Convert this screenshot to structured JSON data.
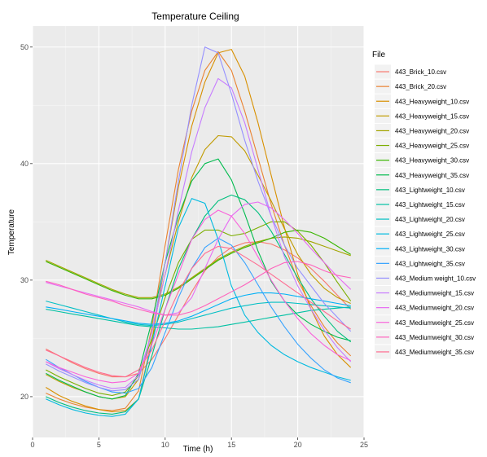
{
  "chart_data": {
    "type": "line",
    "title": "Temperature Ceiling",
    "xlabel": "Time (h)",
    "ylabel": "Temperature",
    "xlim": [
      0,
      25
    ],
    "ylim": [
      16.5,
      51.8
    ],
    "x_ticks": [
      0,
      5,
      10,
      15,
      20,
      25
    ],
    "y_ticks": [
      20,
      30,
      40,
      50
    ],
    "grid": true,
    "panel_background": "#ebebeb",
    "grid_color": "#ffffff",
    "legend": {
      "title": "File",
      "position": "right"
    },
    "x": [
      1,
      2,
      3,
      4,
      5,
      6,
      7,
      8,
      9,
      10,
      11,
      12,
      13,
      14,
      15,
      16,
      17,
      18,
      19,
      20,
      21,
      22,
      23,
      24
    ],
    "series": [
      {
        "name": "443_Brick_10.csv",
        "color": "#F8766D",
        "values": [
          24.1,
          23.5,
          22.9,
          22.4,
          22.0,
          21.7,
          21.7,
          22.0,
          23.2,
          25.0,
          27.0,
          29.0,
          30.8,
          32.0,
          32.8,
          33.2,
          33.3,
          33.1,
          32.6,
          31.9,
          31.0,
          29.9,
          28.7,
          27.5
        ]
      },
      {
        "name": "443_Brick_20.csv",
        "color": "#EA8331",
        "values": [
          20.3,
          19.8,
          19.4,
          19.1,
          18.9,
          18.8,
          19.0,
          20.5,
          26.0,
          33.0,
          39.5,
          44.5,
          48.0,
          49.6,
          48.0,
          44.5,
          40.5,
          36.5,
          33.0,
          30.0,
          27.8,
          26.0,
          24.6,
          23.5
        ]
      },
      {
        "name": "443_Heavyweight_10.csv",
        "color": "#D89000",
        "values": [
          20.8,
          20.1,
          19.6,
          19.2,
          18.9,
          18.7,
          18.8,
          19.8,
          24.8,
          31.5,
          38.0,
          43.2,
          47.0,
          49.5,
          49.8,
          47.5,
          43.5,
          39.0,
          34.5,
          30.5,
          27.5,
          25.2,
          23.6,
          22.5
        ]
      },
      {
        "name": "443_Heavyweight_15.csv",
        "color": "#C09B00",
        "values": [
          21.9,
          21.3,
          20.8,
          20.4,
          20.0,
          19.8,
          20.0,
          21.5,
          25.5,
          30.5,
          35.0,
          38.8,
          41.2,
          42.4,
          42.3,
          41.1,
          39.0,
          36.8,
          34.4,
          32.2,
          30.5,
          29.3,
          28.5,
          28.0
        ]
      },
      {
        "name": "443_Heavyweight_20.csv",
        "color": "#A3A500",
        "values": [
          31.7,
          31.2,
          30.7,
          30.2,
          29.7,
          29.2,
          28.8,
          28.5,
          28.5,
          28.8,
          29.4,
          30.2,
          31.0,
          31.8,
          32.4,
          32.9,
          33.3,
          33.6,
          33.7,
          33.6,
          33.3,
          32.9,
          32.5,
          32.1
        ]
      },
      {
        "name": "443_Heavyweight_25.csv",
        "color": "#7CAE00",
        "values": [
          22.3,
          21.7,
          21.2,
          20.7,
          20.3,
          20.1,
          20.4,
          21.8,
          25.0,
          28.5,
          31.5,
          33.5,
          34.3,
          34.3,
          33.8,
          34.0,
          34.5,
          35.0,
          35.0,
          34.2,
          33.0,
          31.5,
          29.8,
          28.2
        ]
      },
      {
        "name": "443_Heavyweight_30.csv",
        "color": "#39B600",
        "values": [
          31.6,
          31.1,
          30.6,
          30.1,
          29.6,
          29.1,
          28.7,
          28.4,
          28.4,
          28.7,
          29.3,
          30.1,
          30.9,
          31.7,
          32.3,
          32.8,
          33.2,
          33.6,
          34.1,
          34.3,
          34.1,
          33.6,
          32.9,
          32.2
        ]
      },
      {
        "name": "443_Heavyweight_35.csv",
        "color": "#00BB4E",
        "values": [
          22.0,
          21.4,
          20.9,
          20.4,
          20.0,
          19.8,
          20.1,
          22.0,
          26.5,
          31.5,
          35.5,
          38.5,
          40.0,
          40.4,
          38.6,
          35.7,
          32.5,
          29.9,
          28.2,
          27.0,
          26.2,
          25.6,
          25.1,
          24.8
        ]
      },
      {
        "name": "443_Lightweight_10.csv",
        "color": "#00BF7D",
        "values": [
          20.0,
          19.5,
          19.1,
          18.8,
          18.6,
          18.5,
          18.7,
          19.8,
          23.5,
          27.5,
          31.0,
          33.5,
          35.5,
          36.8,
          37.3,
          36.9,
          35.8,
          34.2,
          32.2,
          30.2,
          28.4,
          26.9,
          25.6,
          24.7
        ]
      },
      {
        "name": "443_Lightweight_15.csv",
        "color": "#00C1A3",
        "values": [
          27.5,
          27.3,
          27.1,
          26.9,
          26.7,
          26.5,
          26.3,
          26.1,
          26.0,
          25.9,
          25.8,
          25.8,
          25.9,
          26.0,
          26.2,
          26.4,
          26.6,
          26.8,
          27.0,
          27.2,
          27.4,
          27.5,
          27.6,
          27.7
        ]
      },
      {
        "name": "443_Lightweight_20.csv",
        "color": "#00BFC4",
        "values": [
          28.2,
          27.9,
          27.6,
          27.3,
          27.0,
          26.7,
          26.4,
          26.2,
          26.1,
          26.2,
          26.4,
          26.7,
          27.0,
          27.3,
          27.6,
          27.8,
          28.0,
          28.1,
          28.1,
          28.0,
          27.9,
          27.8,
          27.7,
          27.6
        ]
      },
      {
        "name": "443_Lightweight_25.csv",
        "color": "#00BAE0",
        "values": [
          19.8,
          19.3,
          18.9,
          18.6,
          18.4,
          18.3,
          18.5,
          19.8,
          24.5,
          29.5,
          34.5,
          37.0,
          36.6,
          33.5,
          29.5,
          27.0,
          25.5,
          24.4,
          23.6,
          23.0,
          22.5,
          22.1,
          21.7,
          21.4
        ]
      },
      {
        "name": "443_Lightweight_30.csv",
        "color": "#00B0F6",
        "values": [
          27.7,
          27.5,
          27.3,
          27.1,
          26.9,
          26.7,
          26.5,
          26.3,
          26.2,
          26.3,
          26.5,
          26.9,
          27.4,
          27.9,
          28.4,
          28.7,
          28.9,
          28.9,
          28.8,
          28.6,
          28.4,
          28.2,
          28.0,
          27.8
        ]
      },
      {
        "name": "443_Lightweight_35.csv",
        "color": "#35A2FF",
        "values": [
          23.2,
          22.5,
          21.9,
          21.3,
          20.8,
          20.4,
          20.3,
          20.7,
          22.5,
          25.5,
          28.5,
          31.0,
          32.8,
          33.6,
          33.0,
          31.5,
          29.6,
          27.7,
          26.0,
          24.5,
          23.3,
          22.3,
          21.6,
          21.2
        ]
      },
      {
        "name": "443_Medium weight_10.csv",
        "color": "#9590FF",
        "values": [
          22.8,
          22.2,
          21.7,
          21.2,
          20.8,
          20.5,
          20.6,
          21.5,
          25.5,
          31.5,
          38.5,
          45.0,
          50.0,
          49.5,
          46.0,
          42.0,
          38.5,
          35.5,
          33.0,
          31.0,
          29.5,
          28.0,
          26.8,
          25.6
        ]
      },
      {
        "name": "443_Mediumweight_15.csv",
        "color": "#C77CFF",
        "values": [
          23.0,
          22.4,
          21.9,
          21.4,
          21.0,
          20.7,
          20.8,
          21.8,
          25.5,
          30.5,
          36.0,
          41.0,
          44.8,
          47.3,
          46.5,
          43.5,
          39.5,
          35.5,
          32.0,
          29.5,
          27.5,
          25.7,
          24.2,
          23.0
        ]
      },
      {
        "name": "443_Mediumweight_20.csv",
        "color": "#E76BF3",
        "values": [
          29.8,
          29.5,
          29.2,
          28.9,
          28.6,
          28.3,
          28.0,
          27.7,
          27.3,
          27.0,
          27.2,
          28.5,
          31.0,
          33.5,
          35.5,
          36.5,
          36.7,
          36.2,
          35.2,
          34.0,
          32.7,
          31.5,
          30.3,
          29.2
        ]
      },
      {
        "name": "443_Mediumweight_25.csv",
        "color": "#FA62DB",
        "values": [
          23.0,
          22.5,
          22.1,
          21.7,
          21.4,
          21.2,
          21.3,
          22.0,
          24.5,
          27.5,
          30.5,
          33.5,
          35.2,
          36.0,
          35.5,
          34.0,
          32.0,
          30.0,
          28.2,
          26.7,
          25.4,
          24.4,
          23.6,
          23.1
        ]
      },
      {
        "name": "443_Mediumweight_30.csv",
        "color": "#FF62BC",
        "values": [
          29.9,
          29.6,
          29.2,
          28.8,
          28.5,
          28.2,
          27.8,
          27.5,
          27.2,
          27.0,
          27.0,
          27.3,
          27.8,
          28.4,
          29.0,
          29.6,
          30.3,
          31.0,
          31.5,
          31.6,
          31.3,
          30.8,
          30.4,
          30.2
        ]
      },
      {
        "name": "443_Mediumweight_35.csv",
        "color": "#FF6C91",
        "values": [
          24.0,
          23.5,
          23.0,
          22.5,
          22.1,
          21.8,
          21.7,
          22.3,
          24.0,
          26.5,
          29.0,
          31.0,
          32.3,
          32.9,
          32.7,
          32.0,
          31.3,
          30.5,
          29.7,
          28.9,
          28.1,
          27.3,
          26.5,
          25.8
        ]
      }
    ]
  }
}
